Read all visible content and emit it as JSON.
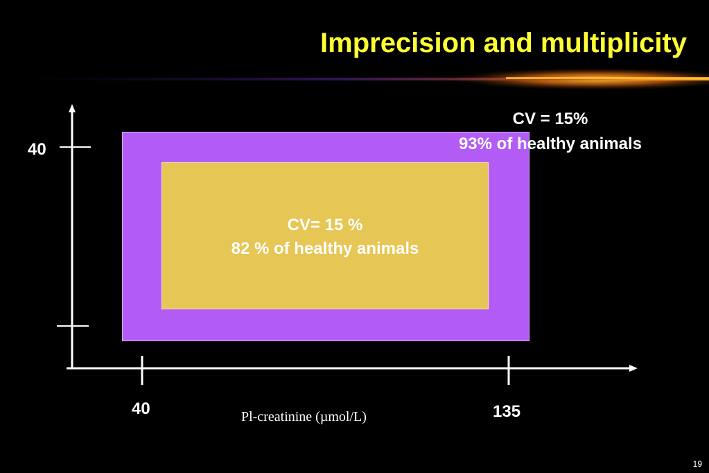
{
  "slide": {
    "title": "Imprecision and multiplicity",
    "page_number": "19",
    "colors": {
      "background": "#000000",
      "title": "#ffff33",
      "outer_region": "#b35cf5",
      "inner_region": "#e6c655",
      "text": "#ffffff"
    }
  },
  "diagram": {
    "outer_region": {
      "line1": "CV = 15%",
      "line2": "93% of healthy animals"
    },
    "inner_region": {
      "line1": "CV= 15 %",
      "line2": "82 % of healthy animals"
    },
    "y_axis": {
      "tick_label": "40"
    },
    "x_axis": {
      "tick_left": "40",
      "tick_right": "135",
      "title": "Pl-creatinine (µmol/L)"
    }
  }
}
